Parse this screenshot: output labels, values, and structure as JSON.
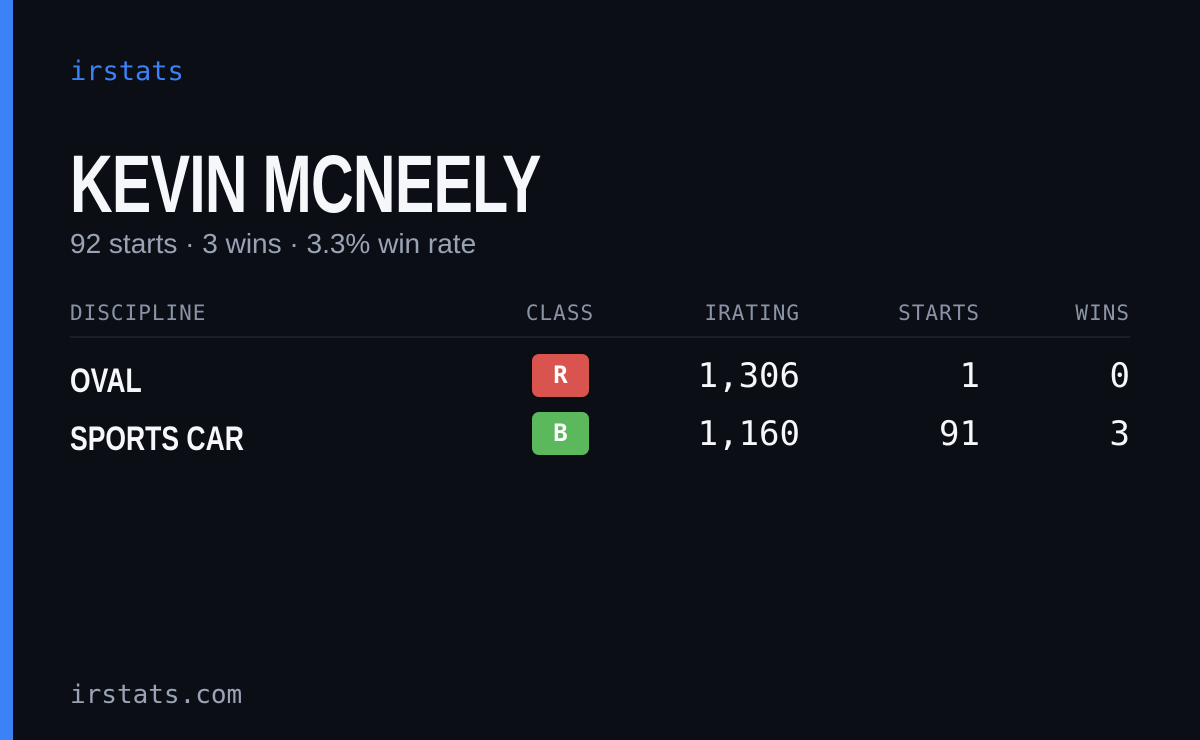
{
  "brand": "irstats",
  "header": {
    "name": "KEVIN MCNEELY",
    "summary": "92 starts · 3 wins · 3.3% win rate"
  },
  "table": {
    "columns": [
      "DISCIPLINE",
      "CLASS",
      "IRATING",
      "STARTS",
      "WINS"
    ],
    "rows": [
      {
        "discipline": "OVAL",
        "class": "R",
        "class_color": "#d9534f",
        "irating": "1,306",
        "starts": "1",
        "wins": "0"
      },
      {
        "discipline": "SPORTS CAR",
        "class": "B",
        "class_color": "#5cb85c",
        "irating": "1,160",
        "starts": "91",
        "wins": "3"
      }
    ]
  },
  "footer": {
    "url": "irstats.com"
  }
}
